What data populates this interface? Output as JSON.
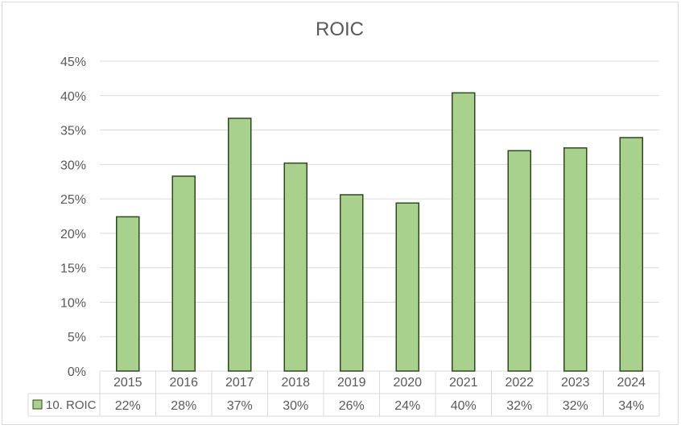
{
  "chart_data": {
    "type": "table",
    "title": "ROIC",
    "categories": [
      "2015",
      "2016",
      "2017",
      "2018",
      "2019",
      "2020",
      "2021",
      "2022",
      "2023",
      "2024"
    ],
    "series": [
      {
        "name": "10. ROIC",
        "values": [
          22.4,
          28.3,
          36.7,
          30.2,
          25.6,
          24.4,
          40.4,
          32.0,
          32.4,
          33.9
        ],
        "table_labels": [
          "22%",
          "28%",
          "37%",
          "30%",
          "26%",
          "24%",
          "40%",
          "32%",
          "32%",
          "34%"
        ]
      }
    ],
    "y_ticks": [
      "0%",
      "5%",
      "10%",
      "15%",
      "20%",
      "25%",
      "30%",
      "35%",
      "40%",
      "45%"
    ],
    "ylim": [
      0,
      45
    ],
    "grid": true,
    "legend": "data-table",
    "colors": {
      "bar_fill": "#a9d18e",
      "bar_stroke": "#2e4a1a",
      "grid": "#d9d9d9",
      "text": "#595959"
    }
  }
}
